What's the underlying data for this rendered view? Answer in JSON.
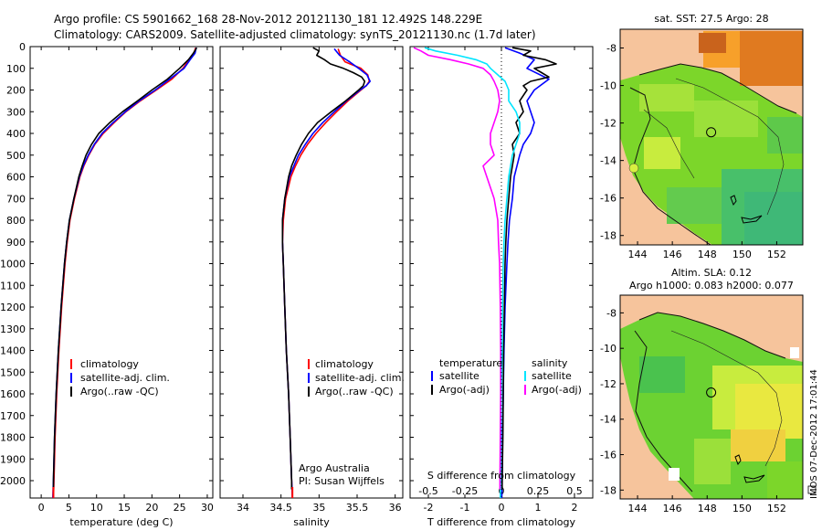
{
  "title_line1": "Argo profile: CS 5901662_168 28-Nov-2012 20121130_181 12.492S 148.229E",
  "title_line2": "Climatology: CARS2009. Satellite-adjusted climatology: synTS_20121130.nc (1.7d later)",
  "side_label": "IMOS 07-Dec-2012 17:01:44",
  "colors": {
    "climatology": "#ff0000",
    "satellite": "#0000ff",
    "argo": "#000000",
    "sal_satellite": "#00e5ff",
    "sal_argo": "#ff00ff",
    "land": "#f6c49c"
  },
  "chart_data": [
    {
      "type": "line",
      "id": "temperature",
      "xlabel": "temperature (deg C)",
      "ylabel": "",
      "xlim": [
        -2,
        31
      ],
      "ylim": [
        2080,
        0
      ],
      "xticks": [
        "0",
        "5",
        "10",
        "15",
        "20",
        "25",
        "30"
      ],
      "xtick_values": [
        0,
        5,
        10,
        15,
        20,
        25,
        30
      ],
      "yticks": [
        "0",
        "100",
        "200",
        "300",
        "400",
        "500",
        "600",
        "700",
        "800",
        "900",
        "1000",
        "1100",
        "1200",
        "1300",
        "1400",
        "1500",
        "1600",
        "1700",
        "1800",
        "1900",
        "2000"
      ],
      "ytick_values": [
        0,
        100,
        200,
        300,
        400,
        500,
        600,
        700,
        800,
        900,
        1000,
        1100,
        1200,
        1300,
        1400,
        1500,
        1600,
        1700,
        1800,
        1900,
        2000
      ],
      "legend": [
        "climatology",
        "satellite-adj. clim.",
        "Argo(..raw -QC)"
      ],
      "series": [
        {
          "name": "climatology",
          "depth": [
            5,
            30,
            60,
            100,
            150,
            200,
            250,
            300,
            350,
            400,
            450,
            500,
            550,
            600,
            700,
            800,
            900,
            1000,
            1200,
            1400,
            1600,
            1800,
            2000,
            2080
          ],
          "values": [
            27.9,
            27.6,
            26.7,
            25.6,
            23.6,
            20.8,
            17.9,
            15.3,
            13.2,
            11.2,
            9.7,
            8.6,
            7.7,
            7.0,
            6.0,
            5.2,
            4.7,
            4.3,
            3.7,
            3.2,
            2.8,
            2.5,
            2.3,
            2.2
          ]
        },
        {
          "name": "satellite-adj. clim.",
          "depth": [
            5,
            30,
            60,
            100,
            150,
            200,
            250,
            300,
            350,
            400,
            450,
            500,
            550,
            600,
            700,
            800,
            900,
            1000,
            1200,
            1400,
            1600,
            1800,
            2000,
            2080
          ],
          "values": [
            28.0,
            27.8,
            26.9,
            25.8,
            23.2,
            20.6,
            17.7,
            15.2,
            13.0,
            11.0,
            9.6,
            8.5,
            7.6,
            6.9,
            5.9,
            5.1,
            4.6,
            4.2,
            3.6,
            3.1,
            2.7,
            2.4,
            2.2,
            2.1
          ]
        },
        {
          "name": "Argo(..raw -QC)",
          "depth": [
            5,
            30,
            60,
            100,
            150,
            200,
            250,
            300,
            350,
            400,
            450,
            500,
            550,
            600,
            700,
            800,
            900,
            1000,
            1200,
            1400,
            1600,
            1800,
            2000,
            2040
          ],
          "values": [
            28.1,
            27.5,
            26.6,
            25.0,
            22.8,
            20.0,
            17.4,
            14.7,
            12.4,
            10.4,
            9.1,
            8.1,
            7.4,
            6.8,
            5.9,
            5.1,
            4.6,
            4.2,
            3.6,
            3.1,
            2.7,
            2.4,
            2.2,
            2.2
          ]
        }
      ]
    },
    {
      "type": "line",
      "id": "salinity",
      "xlabel": "salinity",
      "xlim": [
        33.7,
        36.1
      ],
      "ylim": [
        2080,
        0
      ],
      "xticks": [
        "34",
        "34.5",
        "35",
        "35.5",
        "36"
      ],
      "xtick_values": [
        34,
        34.5,
        35,
        35.5,
        36
      ],
      "legend": [
        "climatology",
        "satellite-adj. clim.",
        "Argo(..raw -QC)"
      ],
      "annotation": [
        "Argo Australia",
        "PI: Susan Wijffels"
      ],
      "series": [
        {
          "name": "climatology",
          "depth": [
            10,
            40,
            70,
            100,
            130,
            160,
            180,
            200,
            250,
            300,
            350,
            400,
            450,
            500,
            550,
            600,
            700,
            800,
            900,
            1000,
            1200,
            1400,
            1600,
            1800,
            2000,
            2080
          ],
          "values": [
            35.25,
            35.28,
            35.34,
            35.55,
            35.64,
            35.66,
            35.62,
            35.55,
            35.38,
            35.23,
            35.09,
            34.96,
            34.85,
            34.76,
            34.69,
            34.63,
            34.56,
            34.53,
            34.52,
            34.53,
            34.55,
            34.57,
            34.6,
            34.62,
            34.64,
            34.65
          ]
        },
        {
          "name": "satellite-adj. clim.",
          "depth": [
            10,
            40,
            70,
            100,
            130,
            160,
            180,
            200,
            250,
            300,
            350,
            400,
            450,
            500,
            550,
            600,
            700,
            800,
            900,
            1000,
            1200,
            1400,
            1600,
            1800,
            2000,
            2080
          ],
          "values": [
            35.2,
            35.27,
            35.4,
            35.52,
            35.63,
            35.67,
            35.62,
            35.54,
            35.36,
            35.2,
            35.05,
            34.92,
            34.82,
            34.73,
            34.67,
            34.61,
            34.55,
            34.52,
            34.52,
            34.53,
            34.55,
            34.57,
            34.6,
            34.62,
            34.64,
            34.65
          ]
        },
        {
          "name": "Argo(..raw -QC)",
          "depth": [
            5,
            20,
            40,
            60,
            80,
            100,
            120,
            140,
            160,
            180,
            200,
            250,
            300,
            350,
            400,
            450,
            500,
            550,
            600,
            700,
            800,
            900,
            1000,
            1200,
            1400,
            1600,
            1800,
            2000,
            2040
          ],
          "values": [
            34.92,
            35.0,
            34.97,
            35.07,
            35.15,
            35.32,
            35.45,
            35.56,
            35.6,
            35.58,
            35.52,
            35.35,
            35.16,
            34.98,
            34.86,
            34.77,
            34.7,
            34.64,
            34.6,
            34.55,
            34.52,
            34.52,
            34.53,
            34.55,
            34.57,
            34.6,
            34.62,
            34.64,
            34.64
          ]
        }
      ]
    },
    {
      "type": "line",
      "id": "differences",
      "xlabel": "T difference from climatology",
      "xlabel_top": "S difference from climatology",
      "xlim": [
        -2.5,
        2.5
      ],
      "ylim": [
        2080,
        0
      ],
      "xticks": [
        "-2",
        "-1",
        "0",
        "1",
        "2"
      ],
      "xtick_values": [
        -2,
        -1,
        0,
        1,
        2
      ],
      "sticks": [
        "-0.5",
        "-0.25",
        "0",
        "0.25",
        "0.5"
      ],
      "stick_values": [
        -2,
        -1,
        0,
        1,
        2
      ],
      "legend_temperature": [
        "temperature",
        "satellite",
        "Argo(-adj)"
      ],
      "legend_salinity": [
        "salinity",
        "satellite",
        "Argo(-adj)"
      ],
      "series": [
        {
          "name": "temperature satellite",
          "depth": [
            5,
            30,
            60,
            100,
            150,
            200,
            250,
            300,
            350,
            400,
            450,
            500,
            600,
            700,
            800,
            900,
            1000,
            1200,
            1400,
            1600,
            1800,
            2000,
            2080
          ],
          "values": [
            0.1,
            0.5,
            0.9,
            0.7,
            1.3,
            0.9,
            0.7,
            0.8,
            0.9,
            0.8,
            0.6,
            0.5,
            0.35,
            0.3,
            0.22,
            0.18,
            0.15,
            0.1,
            0.07,
            0.05,
            0.03,
            0.02,
            0.01
          ]
        },
        {
          "name": "temperature Argo(-adj)",
          "depth": [
            5,
            20,
            40,
            60,
            80,
            100,
            120,
            140,
            160,
            180,
            200,
            250,
            300,
            350,
            400,
            450,
            500,
            600,
            700,
            800,
            900,
            1000,
            1200,
            1400,
            1600,
            1800,
            2000,
            2040
          ],
          "values": [
            0.3,
            0.8,
            0.6,
            1.2,
            1.5,
            0.9,
            1.1,
            1.3,
            0.8,
            0.6,
            0.7,
            0.5,
            0.6,
            0.4,
            0.5,
            0.3,
            0.35,
            0.25,
            0.2,
            0.15,
            0.12,
            0.1,
            0.08,
            0.06,
            0.05,
            0.04,
            0.02,
            0.02
          ]
        },
        {
          "name": "salinity satellite",
          "depth": [
            5,
            20,
            40,
            60,
            80,
            100,
            130,
            160,
            200,
            250,
            300,
            350,
            400,
            450,
            500,
            600,
            700,
            800,
            900,
            1000,
            1200,
            1400,
            1600,
            1800,
            2000,
            2080
          ],
          "values": [
            -2.1,
            -1.8,
            -1.2,
            -0.7,
            -0.4,
            -0.3,
            -0.1,
            0.1,
            0.2,
            0.2,
            0.4,
            0.5,
            0.5,
            0.4,
            0.3,
            0.2,
            0.15,
            0.1,
            0.07,
            0.05,
            0.03,
            0.02,
            0.0,
            -0.01,
            -0.02,
            -0.03
          ]
        },
        {
          "name": "salinity Argo(-adj)",
          "depth": [
            5,
            20,
            40,
            60,
            80,
            100,
            130,
            160,
            200,
            250,
            300,
            350,
            400,
            450,
            500,
            550,
            600,
            650,
            700,
            800,
            900,
            1000,
            1200,
            1400,
            1600,
            1800,
            2000,
            2040
          ],
          "values": [
            -2.4,
            -2.2,
            -2.0,
            -1.4,
            -0.9,
            -0.5,
            -0.3,
            -0.2,
            -0.1,
            -0.05,
            -0.1,
            -0.2,
            -0.3,
            -0.3,
            -0.2,
            -0.5,
            -0.4,
            -0.3,
            -0.2,
            -0.1,
            -0.08,
            -0.05,
            -0.03,
            -0.02,
            -0.02,
            -0.03,
            -0.04,
            -0.04
          ]
        }
      ]
    },
    {
      "type": "heatmap",
      "id": "sst_map",
      "title": "sat. SST: 27.5 Argo: 28",
      "lon_range": [
        143,
        153.5
      ],
      "lat_range": [
        -18.5,
        -7
      ],
      "xticks": [
        "144",
        "146",
        "148",
        "150",
        "152"
      ],
      "xtick_values": [
        144,
        146,
        148,
        150,
        152
      ],
      "yticks": [
        "-8",
        "-10",
        "-12",
        "-14",
        "-16",
        "-18"
      ],
      "ytick_values": [
        -8,
        -10,
        -12,
        -14,
        -16,
        -18
      ],
      "argo_position": {
        "lon": 148.229,
        "lat": -12.492
      }
    },
    {
      "type": "heatmap",
      "id": "sla_map",
      "title_line1": "Altim. SLA: 0.12",
      "title_line2": "Argo h1000: 0.083 h2000: 0.077",
      "lon_range": [
        143,
        153.5
      ],
      "lat_range": [
        -18.5,
        -7
      ],
      "xticks": [
        "144",
        "146",
        "148",
        "150",
        "152"
      ],
      "xtick_values": [
        144,
        146,
        148,
        150,
        152
      ],
      "yticks": [
        "-8",
        "-10",
        "-12",
        "-14",
        "-16",
        "-18"
      ],
      "ytick_values": [
        -8,
        -10,
        -12,
        -14,
        -16,
        -18
      ],
      "argo_position": {
        "lon": 148.229,
        "lat": -12.492
      }
    }
  ]
}
